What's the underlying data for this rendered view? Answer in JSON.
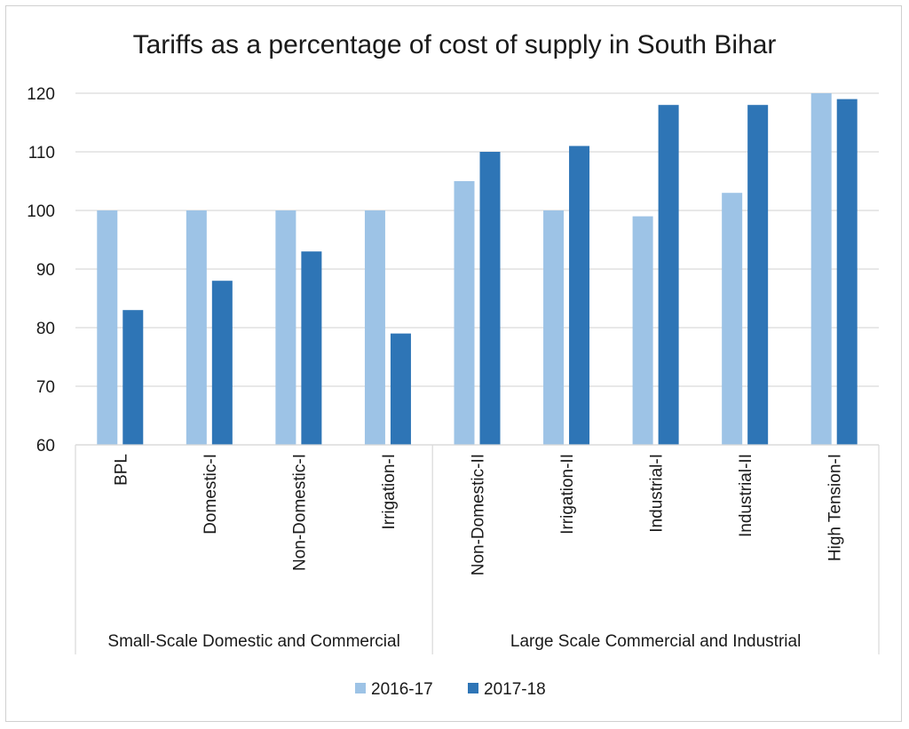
{
  "chart_data": {
    "type": "bar",
    "title": "Tariffs as a percentage of cost of supply in South Bihar",
    "xlabel": "",
    "ylabel": "",
    "ylim": [
      60,
      120
    ],
    "yticks": [
      60,
      70,
      80,
      90,
      100,
      110,
      120
    ],
    "grid": true,
    "legend_position": "bottom",
    "categories": [
      "BPL",
      "Domestic-I",
      "Non-Domestic-I",
      "Irrigation-I",
      "Non-Domestic-II",
      "Irrigation-II",
      "Industrial-I",
      "Industrial-II",
      "High Tension-I"
    ],
    "groups": [
      {
        "label": "Small-Scale Domestic and Commercial",
        "categories": 4
      },
      {
        "label": "Large Scale Commercial and Industrial",
        "categories": 5
      }
    ],
    "series": [
      {
        "name": "2016-17",
        "color": "#9dc3e6",
        "values": [
          100,
          100,
          100,
          100,
          105,
          100,
          99,
          103,
          120
        ]
      },
      {
        "name": "2017-18",
        "color": "#2e75b6",
        "values": [
          83,
          88,
          93,
          79,
          110,
          111,
          118,
          118,
          119
        ]
      }
    ]
  }
}
